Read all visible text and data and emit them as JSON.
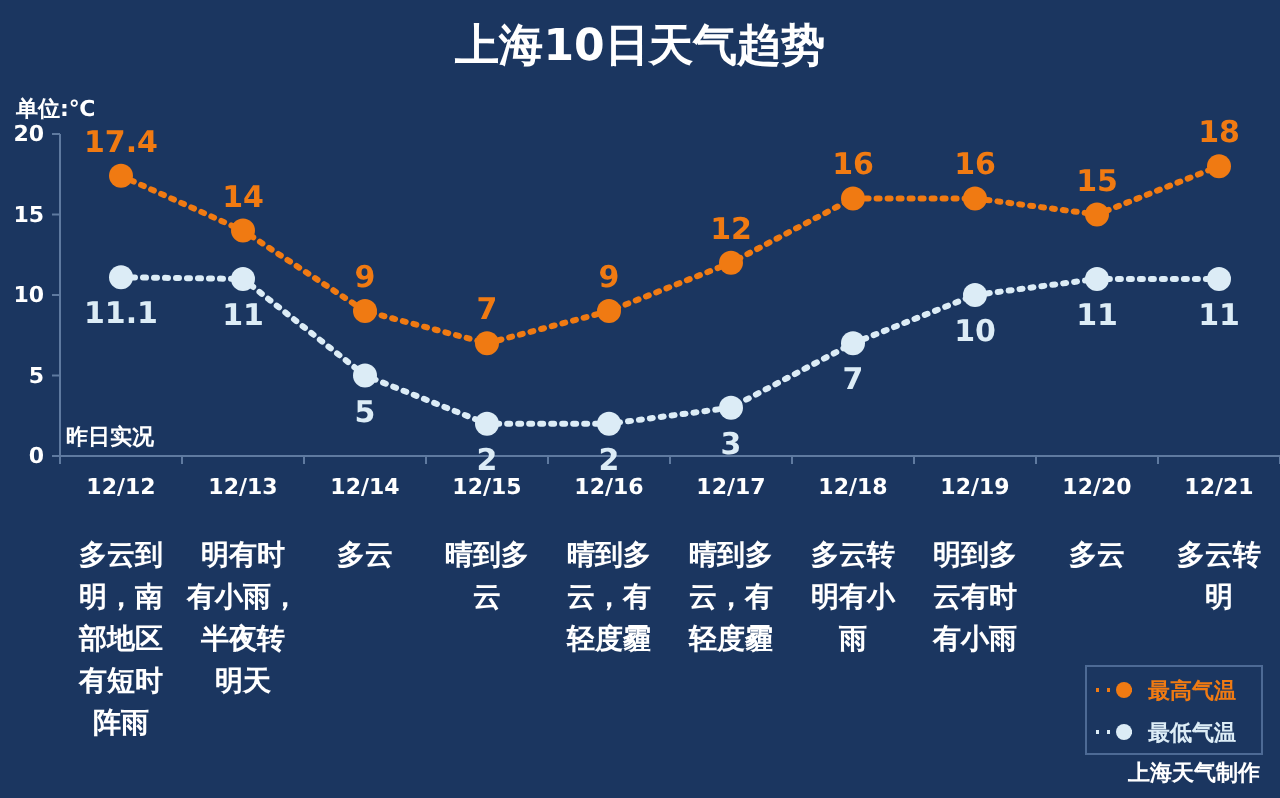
{
  "chart_data": {
    "type": "line",
    "title": "上海10日天气趋势",
    "ylabel": "单位:℃",
    "categories": [
      "12/12",
      "12/13",
      "12/14",
      "12/15",
      "12/16",
      "12/17",
      "12/18",
      "12/19",
      "12/20",
      "12/21"
    ],
    "series": [
      {
        "name": "最高气温",
        "color": "#f07a12",
        "values": [
          17.4,
          14,
          9,
          7,
          9,
          12,
          16,
          16,
          15,
          18
        ]
      },
      {
        "name": "最低气温",
        "color": "#dcecf6",
        "values": [
          11.1,
          11,
          5,
          2,
          2,
          3,
          7,
          10,
          11,
          11
        ]
      }
    ],
    "ylim": [
      0,
      20
    ],
    "yticks": [
      0,
      5,
      10,
      15,
      20
    ],
    "grid": false,
    "legend": "bottom right",
    "marker": "circle",
    "line_style": "dotted",
    "data_labels": true,
    "annotations": [
      "多云到明，南部地区有短时阵雨",
      "明有时有小雨，半夜转明天",
      "多云",
      "晴到多云",
      "晴到多云，有轻度霾",
      "晴到多云，有轻度霾",
      "多云转明有小雨",
      "明到多云有时有小雨",
      "多云",
      "多云转明",
      "昨日实况",
      "上海天气制作"
    ]
  }
}
